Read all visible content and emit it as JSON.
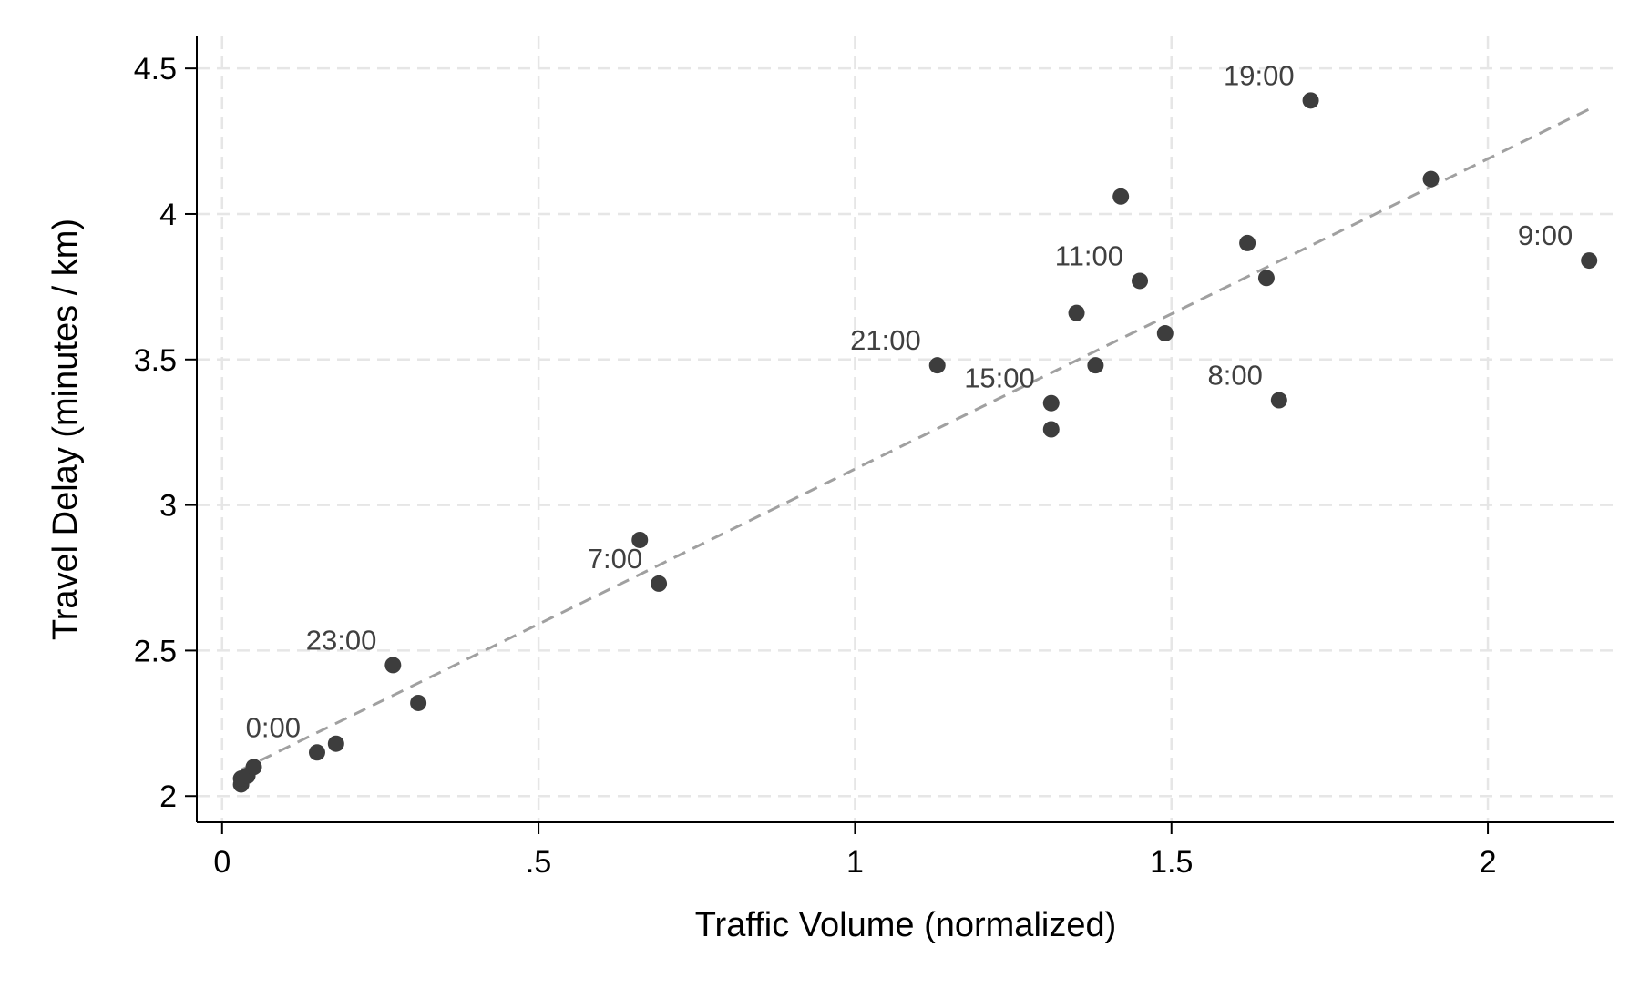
{
  "chart_data": {
    "type": "scatter",
    "title": "",
    "xlabel": "Traffic Volume (normalized)",
    "ylabel": "Travel Delay (minutes / km)",
    "xlim": [
      -0.04,
      2.2
    ],
    "ylim": [
      1.91,
      4.61
    ],
    "x_ticks": [
      {
        "value": 0,
        "label": "0"
      },
      {
        "value": 0.5,
        "label": ".5"
      },
      {
        "value": 1,
        "label": "1"
      },
      {
        "value": 1.5,
        "label": "1.5"
      },
      {
        "value": 2,
        "label": "2"
      }
    ],
    "y_ticks": [
      {
        "value": 2,
        "label": "2"
      },
      {
        "value": 2.5,
        "label": "2.5"
      },
      {
        "value": 3,
        "label": "3"
      },
      {
        "value": 3.5,
        "label": "3.5"
      },
      {
        "value": 4,
        "label": "4"
      },
      {
        "value": 4.5,
        "label": "4.5"
      }
    ],
    "grid": true,
    "legend": "none",
    "colors": {
      "points": "#3d3d3d",
      "fit_line": "#a0a0a0",
      "grid": "#e6e6e6",
      "axis": "#000000",
      "point_labels": "#404040"
    },
    "points": [
      {
        "x": 0.03,
        "y": 2.04,
        "label": ""
      },
      {
        "x": 0.03,
        "y": 2.06,
        "label": ""
      },
      {
        "x": 0.04,
        "y": 2.07,
        "label": ""
      },
      {
        "x": 0.05,
        "y": 2.1,
        "label": ""
      },
      {
        "x": 0.15,
        "y": 2.15,
        "label": "0:00"
      },
      {
        "x": 0.18,
        "y": 2.18,
        "label": ""
      },
      {
        "x": 0.27,
        "y": 2.45,
        "label": "23:00"
      },
      {
        "x": 0.31,
        "y": 2.32,
        "label": ""
      },
      {
        "x": 0.66,
        "y": 2.88,
        "label": ""
      },
      {
        "x": 0.69,
        "y": 2.73,
        "label": "7:00"
      },
      {
        "x": 1.13,
        "y": 3.48,
        "label": "21:00"
      },
      {
        "x": 1.31,
        "y": 3.35,
        "label": "15:00"
      },
      {
        "x": 1.31,
        "y": 3.26,
        "label": ""
      },
      {
        "x": 1.35,
        "y": 3.66,
        "label": ""
      },
      {
        "x": 1.38,
        "y": 3.48,
        "label": ""
      },
      {
        "x": 1.42,
        "y": 4.06,
        "label": ""
      },
      {
        "x": 1.45,
        "y": 3.77,
        "label": "11:00"
      },
      {
        "x": 1.49,
        "y": 3.59,
        "label": ""
      },
      {
        "x": 1.62,
        "y": 3.9,
        "label": ""
      },
      {
        "x": 1.65,
        "y": 3.78,
        "label": ""
      },
      {
        "x": 1.67,
        "y": 3.36,
        "label": "8:00"
      },
      {
        "x": 1.72,
        "y": 4.39,
        "label": "19:00"
      },
      {
        "x": 1.91,
        "y": 4.12,
        "label": ""
      },
      {
        "x": 2.16,
        "y": 3.84,
        "label": "9:00"
      }
    ],
    "fit_line": {
      "style": "dashed",
      "from": {
        "x": 0.03,
        "y": 2.09
      },
      "to": {
        "x": 2.16,
        "y": 4.36
      }
    }
  }
}
